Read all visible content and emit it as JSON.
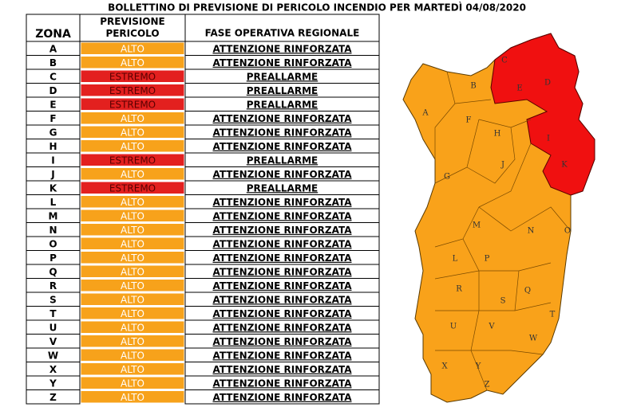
{
  "header": {
    "title": "BOLLETTINO DI PREVISIONE DI PERICOLO INCENDIO PER MARTEDÌ 04/08/2020"
  },
  "table": {
    "columns": [
      "ZONA",
      "PREVISIONE PERICOLO",
      "FASE OPERATIVA REGIONALE"
    ],
    "rows": [
      {
        "zona": "A",
        "previsione": "ALTO",
        "fase": "ATTENZIONE RINFORZATA",
        "color": "#f7a21b"
      },
      {
        "zona": "B",
        "previsione": "ALTO",
        "fase": "ATTENZIONE RINFORZATA",
        "color": "#f7a21b"
      },
      {
        "zona": "C",
        "previsione": "ESTREMO",
        "fase": "PREALLARME",
        "color": "#e3201f"
      },
      {
        "zona": "D",
        "previsione": "ESTREMO",
        "fase": "PREALLARME",
        "color": "#e3201f"
      },
      {
        "zona": "E",
        "previsione": "ESTREMO",
        "fase": "PREALLARME",
        "color": "#e3201f"
      },
      {
        "zona": "F",
        "previsione": "ALTO",
        "fase": "ATTENZIONE RINFORZATA",
        "color": "#f7a21b"
      },
      {
        "zona": "G",
        "previsione": "ALTO",
        "fase": "ATTENZIONE RINFORZATA",
        "color": "#f7a21b"
      },
      {
        "zona": "H",
        "previsione": "ALTO",
        "fase": "ATTENZIONE RINFORZATA",
        "color": "#f7a21b"
      },
      {
        "zona": "I",
        "previsione": "ESTREMO",
        "fase": "PREALLARME",
        "color": "#e3201f"
      },
      {
        "zona": "J",
        "previsione": "ALTO",
        "fase": "ATTENZIONE RINFORZATA",
        "color": "#f7a21b"
      },
      {
        "zona": "K",
        "previsione": "ESTREMO",
        "fase": "PREALLARME",
        "color": "#e3201f"
      },
      {
        "zona": "L",
        "previsione": "ALTO",
        "fase": "ATTENZIONE RINFORZATA",
        "color": "#f7a21b"
      },
      {
        "zona": "M",
        "previsione": "ALTO",
        "fase": "ATTENZIONE RINFORZATA",
        "color": "#f7a21b"
      },
      {
        "zona": "N",
        "previsione": "ALTO",
        "fase": "ATTENZIONE RINFORZATA",
        "color": "#f7a21b"
      },
      {
        "zona": "O",
        "previsione": "ALTO",
        "fase": "ATTENZIONE RINFORZATA",
        "color": "#f7a21b"
      },
      {
        "zona": "P",
        "previsione": "ALTO",
        "fase": "ATTENZIONE RINFORZATA",
        "color": "#f7a21b"
      },
      {
        "zona": "Q",
        "previsione": "ALTO",
        "fase": "ATTENZIONE RINFORZATA",
        "color": "#f7a21b"
      },
      {
        "zona": "R",
        "previsione": "ALTO",
        "fase": "ATTENZIONE RINFORZATA",
        "color": "#f7a21b"
      },
      {
        "zona": "S",
        "previsione": "ALTO",
        "fase": "ATTENZIONE RINFORZATA",
        "color": "#f7a21b"
      },
      {
        "zona": "T",
        "previsione": "ALTO",
        "fase": "ATTENZIONE RINFORZATA",
        "color": "#f7a21b"
      },
      {
        "zona": "U",
        "previsione": "ALTO",
        "fase": "ATTENZIONE RINFORZATA",
        "color": "#f7a21b"
      },
      {
        "zona": "V",
        "previsione": "ALTO",
        "fase": "ATTENZIONE RINFORZATA",
        "color": "#f7a21b"
      },
      {
        "zona": "W",
        "previsione": "ALTO",
        "fase": "ATTENZIONE RINFORZATA",
        "color": "#f7a21b"
      },
      {
        "zona": "X",
        "previsione": "ALTO",
        "fase": "ATTENZIONE RINFORZATA",
        "color": "#f7a21b"
      },
      {
        "zona": "Y",
        "previsione": "ALTO",
        "fase": "ATTENZIONE RINFORZATA",
        "color": "#f7a21b"
      },
      {
        "zona": "Z",
        "previsione": "ALTO",
        "fase": "ATTENZIONE RINFORZATA",
        "color": "#f7a21b"
      }
    ]
  }
}
